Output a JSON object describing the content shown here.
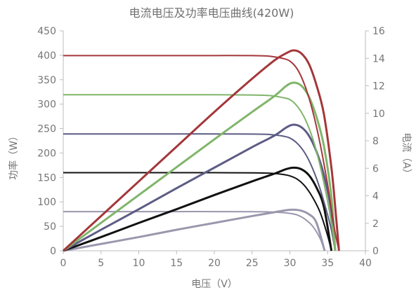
{
  "chart_data": {
    "type": "line",
    "title": "电流电压及功率电压曲线(420W)",
    "xlabel": "电压（V）",
    "ylabel_left": "功率（W）",
    "ylabel_right": "电流（A）",
    "xlim": [
      0,
      40
    ],
    "ylim_left": [
      0,
      450
    ],
    "ylim_right": [
      0,
      16
    ],
    "x_ticks": [
      0,
      5,
      10,
      15,
      20,
      25,
      30,
      35,
      40
    ],
    "y_left_ticks": [
      0,
      50,
      100,
      150,
      200,
      250,
      300,
      350,
      400,
      450
    ],
    "y_right_ticks": [
      0,
      2,
      4,
      6,
      8,
      10,
      12,
      14,
      16
    ],
    "grid": false,
    "legend": "none",
    "series": [
      {
        "color": "#a4373a",
        "current_axis": "right",
        "current": {
          "x": [
            0,
            5,
            10,
            15,
            20,
            25,
            27,
            28,
            29,
            30,
            31,
            32,
            33,
            34,
            35,
            35.5,
            36,
            36.5
          ],
          "y": [
            14.2,
            14.2,
            14.2,
            14.2,
            14.2,
            14.2,
            14.17,
            14.1,
            14.0,
            13.8,
            13.2,
            12.0,
            10.2,
            7.8,
            4.8,
            3.0,
            1.3,
            0
          ]
        },
        "power": {
          "x": [
            0,
            5,
            10,
            15,
            20,
            25,
            28,
            29.5,
            30.5,
            31.5,
            32.5,
            33.5,
            34.5,
            35.5,
            36,
            36.5
          ],
          "y": [
            0,
            71,
            142,
            213,
            284,
            352,
            390,
            404,
            410,
            404,
            383,
            340,
            280,
            170,
            90,
            0
          ]
        }
      },
      {
        "color": "#80b56a",
        "current_axis": "right",
        "current": {
          "x": [
            0,
            5,
            10,
            15,
            20,
            25,
            27,
            28,
            29,
            30,
            31,
            32,
            33,
            34,
            35,
            35.5,
            36
          ],
          "y": [
            11.35,
            11.35,
            11.35,
            11.35,
            11.35,
            11.33,
            11.3,
            11.25,
            11.15,
            11.0,
            10.5,
            9.6,
            8.2,
            6.2,
            3.6,
            2.0,
            0
          ]
        },
        "power": {
          "x": [
            0,
            5,
            10,
            15,
            20,
            25,
            28,
            29.5,
            30.5,
            31.5,
            32.5,
            33.5,
            34.5,
            35.5,
            36
          ],
          "y": [
            0,
            57,
            114,
            171,
            228,
            284,
            317,
            337,
            344,
            338,
            316,
            275,
            215,
            110,
            0
          ]
        }
      },
      {
        "color": "#5c5c85",
        "current_axis": "right",
        "current": {
          "x": [
            0,
            5,
            10,
            15,
            20,
            25,
            27,
            28,
            29,
            30,
            31,
            32,
            33,
            34,
            35,
            35.5,
            36
          ],
          "y": [
            8.5,
            8.5,
            8.5,
            8.5,
            8.5,
            8.49,
            8.47,
            8.42,
            8.35,
            8.2,
            7.8,
            7.1,
            6.0,
            4.5,
            2.6,
            1.5,
            0
          ]
        },
        "power": {
          "x": [
            0,
            5,
            10,
            15,
            20,
            25,
            28,
            29.5,
            30.5,
            31.5,
            32.5,
            33.5,
            34.5,
            35.5,
            36
          ],
          "y": [
            0,
            43,
            85,
            128,
            170,
            212,
            236,
            252,
            258,
            253,
            236,
            204,
            155,
            80,
            0
          ]
        }
      },
      {
        "color": "#111111",
        "current_axis": "right",
        "current": {
          "x": [
            0,
            5,
            10,
            15,
            20,
            25,
            27,
            28,
            29,
            30,
            31,
            32,
            33,
            34,
            35,
            35.5
          ],
          "y": [
            5.68,
            5.68,
            5.68,
            5.68,
            5.68,
            5.67,
            5.65,
            5.62,
            5.56,
            5.45,
            5.2,
            4.7,
            3.9,
            2.8,
            1.1,
            0
          ]
        },
        "power": {
          "x": [
            0,
            5,
            10,
            15,
            20,
            25,
            28,
            29.5,
            30.5,
            31.5,
            32.5,
            33.5,
            34.5,
            35.5
          ],
          "y": [
            0,
            28,
            57,
            85,
            114,
            142,
            158,
            167,
            170,
            167,
            155,
            130,
            90,
            0
          ]
        }
      },
      {
        "color": "#9a97ad",
        "current_axis": "right",
        "current": {
          "x": [
            0,
            5,
            10,
            15,
            20,
            25,
            27,
            28,
            29,
            30,
            31,
            32,
            33,
            34,
            34.6
          ],
          "y": [
            2.85,
            2.85,
            2.85,
            2.85,
            2.85,
            2.84,
            2.83,
            2.81,
            2.78,
            2.72,
            2.6,
            2.3,
            1.8,
            0.9,
            0
          ]
        },
        "power": {
          "x": [
            0,
            5,
            10,
            15,
            20,
            25,
            28,
            29.5,
            30.5,
            31.5,
            32.5,
            33.5,
            34.6
          ],
          "y": [
            0,
            14,
            28,
            43,
            57,
            71,
            79,
            83,
            84,
            82,
            75,
            58,
            0
          ]
        }
      }
    ]
  }
}
